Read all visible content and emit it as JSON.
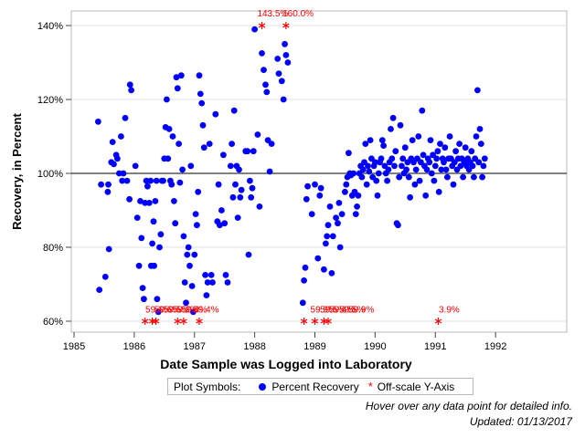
{
  "chart_data": {
    "type": "scatter",
    "title": "",
    "xlabel": "Date Sample was Logged into Laboratory",
    "ylabel": "Recovery, in Percent",
    "xlim": [
      1985,
      1993
    ],
    "ylim": [
      60,
      145
    ],
    "x_ticks": [
      1985,
      1986,
      1987,
      1988,
      1989,
      1990,
      1991,
      1992
    ],
    "x_tick_labels": [
      "1985",
      "1986",
      "1987",
      "1988",
      "1989",
      "1990",
      "1991",
      "1992"
    ],
    "y_ticks": [
      60,
      80,
      100,
      120,
      140
    ],
    "y_tick_labels": [
      "60%",
      "80%",
      "100%",
      "120%",
      "140%"
    ],
    "reference_line": 100,
    "grid": "horizontal",
    "legend_title": "Plot Symbols:",
    "legend_position": "bottom",
    "series": [
      {
        "name": "Percent Recovery",
        "marker": "circle",
        "color": "#0000ff",
        "points": [
          [
            1985.4,
            114
          ],
          [
            1985.45,
            97
          ],
          [
            1985.42,
            68.5
          ],
          [
            1985.52,
            72
          ],
          [
            1985.56,
            95
          ],
          [
            1985.57,
            97
          ],
          [
            1985.58,
            79.5
          ],
          [
            1985.62,
            103
          ],
          [
            1985.64,
            108.5
          ],
          [
            1985.66,
            102.5
          ],
          [
            1985.7,
            105
          ],
          [
            1985.72,
            104
          ],
          [
            1985.75,
            100
          ],
          [
            1985.78,
            110
          ],
          [
            1985.8,
            98
          ],
          [
            1985.82,
            100
          ],
          [
            1985.85,
            115
          ],
          [
            1985.88,
            98
          ],
          [
            1985.92,
            93
          ],
          [
            1985.93,
            124
          ],
          [
            1985.95,
            122.5
          ],
          [
            1986.02,
            102
          ],
          [
            1986.05,
            88
          ],
          [
            1986.08,
            75
          ],
          [
            1986.1,
            92.5
          ],
          [
            1986.12,
            82.5
          ],
          [
            1986.14,
            69
          ],
          [
            1986.16,
            66
          ],
          [
            1986.18,
            92
          ],
          [
            1986.2,
            98
          ],
          [
            1986.22,
            96.5
          ],
          [
            1986.25,
            92
          ],
          [
            1986.27,
            98
          ],
          [
            1986.28,
            75
          ],
          [
            1986.3,
            81
          ],
          [
            1986.32,
            87
          ],
          [
            1986.33,
            75
          ],
          [
            1986.35,
            92.5
          ],
          [
            1986.37,
            98
          ],
          [
            1986.38,
            66
          ],
          [
            1986.4,
            62.5
          ],
          [
            1986.42,
            80
          ],
          [
            1986.44,
            83.5
          ],
          [
            1986.46,
            98
          ],
          [
            1986.48,
            98
          ],
          [
            1986.5,
            104
          ],
          [
            1986.52,
            112.5
          ],
          [
            1986.54,
            120
          ],
          [
            1986.56,
            104
          ],
          [
            1986.58,
            112
          ],
          [
            1986.6,
            98
          ],
          [
            1986.62,
            97
          ],
          [
            1986.64,
            110
          ],
          [
            1986.66,
            92.5
          ],
          [
            1986.68,
            86.5
          ],
          [
            1986.7,
            126
          ],
          [
            1986.72,
            123
          ],
          [
            1986.74,
            108
          ],
          [
            1986.76,
            97.5
          ],
          [
            1986.78,
            126.5
          ],
          [
            1986.8,
            101
          ],
          [
            1986.82,
            83
          ],
          [
            1986.84,
            70.5
          ],
          [
            1986.86,
            65
          ],
          [
            1986.88,
            78
          ],
          [
            1986.9,
            80
          ],
          [
            1986.92,
            75
          ],
          [
            1986.94,
            102
          ],
          [
            1986.96,
            69.5
          ],
          [
            1986.98,
            62.5
          ],
          [
            1987.0,
            78
          ],
          [
            1987.02,
            89
          ],
          [
            1987.04,
            86
          ],
          [
            1987.06,
            95
          ],
          [
            1987.08,
            126.5
          ],
          [
            1987.1,
            121.5
          ],
          [
            1987.12,
            119
          ],
          [
            1987.14,
            113
          ],
          [
            1987.16,
            107
          ],
          [
            1987.18,
            72.5
          ],
          [
            1987.2,
            67
          ],
          [
            1987.22,
            70.5
          ],
          [
            1987.25,
            108
          ],
          [
            1987.28,
            72.5
          ],
          [
            1987.3,
            70.5
          ],
          [
            1987.35,
            116
          ],
          [
            1987.38,
            87
          ],
          [
            1987.4,
            97
          ],
          [
            1987.42,
            86
          ],
          [
            1987.45,
            90
          ],
          [
            1987.48,
            105
          ],
          [
            1987.5,
            86.5
          ],
          [
            1987.52,
            72.5
          ],
          [
            1987.55,
            70.5
          ],
          [
            1987.6,
            102
          ],
          [
            1987.62,
            108
          ],
          [
            1987.64,
            93.5
          ],
          [
            1987.66,
            117
          ],
          [
            1987.68,
            97
          ],
          [
            1987.7,
            102
          ],
          [
            1987.72,
            88
          ],
          [
            1987.74,
            101
          ],
          [
            1987.76,
            93.5
          ],
          [
            1987.78,
            95.5
          ],
          [
            1987.85,
            106
          ],
          [
            1987.88,
            106
          ],
          [
            1987.9,
            78
          ],
          [
            1987.92,
            98
          ],
          [
            1987.94,
            93.5
          ],
          [
            1987.96,
            96
          ],
          [
            1987.98,
            106
          ],
          [
            1988.0,
            139
          ],
          [
            1988.05,
            110.5
          ],
          [
            1988.08,
            91
          ],
          [
            1988.12,
            132.5
          ],
          [
            1988.15,
            128
          ],
          [
            1988.18,
            124
          ],
          [
            1988.2,
            122
          ],
          [
            1988.22,
            109
          ],
          [
            1988.25,
            100.5
          ],
          [
            1988.28,
            108
          ],
          [
            1988.38,
            131
          ],
          [
            1988.4,
            127
          ],
          [
            1988.45,
            125
          ],
          [
            1988.48,
            120
          ],
          [
            1988.5,
            135
          ],
          [
            1988.52,
            132
          ],
          [
            1988.55,
            130
          ],
          [
            1988.8,
            65
          ],
          [
            1988.82,
            71
          ],
          [
            1988.84,
            74.5
          ],
          [
            1988.86,
            93
          ],
          [
            1988.88,
            96.5
          ],
          [
            1988.95,
            89
          ],
          [
            1989.0,
            97
          ],
          [
            1989.05,
            77
          ],
          [
            1989.08,
            94
          ],
          [
            1989.1,
            96
          ],
          [
            1989.15,
            74
          ],
          [
            1989.18,
            81
          ],
          [
            1989.2,
            83
          ],
          [
            1989.22,
            86
          ],
          [
            1989.25,
            91
          ],
          [
            1989.28,
            73
          ],
          [
            1989.3,
            83
          ],
          [
            1989.35,
            88
          ],
          [
            1989.38,
            86.5
          ],
          [
            1989.4,
            92
          ],
          [
            1989.42,
            80
          ],
          [
            1989.45,
            89
          ],
          [
            1989.5,
            95
          ],
          [
            1989.52,
            97
          ],
          [
            1989.54,
            99
          ],
          [
            1989.56,
            105.5
          ],
          [
            1989.58,
            100
          ],
          [
            1989.6,
            99.5
          ],
          [
            1989.62,
            94
          ],
          [
            1989.64,
            100
          ],
          [
            1989.66,
            95
          ],
          [
            1989.68,
            89
          ],
          [
            1989.7,
            91
          ],
          [
            1989.72,
            94
          ],
          [
            1989.74,
            100
          ],
          [
            1989.76,
            102
          ],
          [
            1989.78,
            99
          ],
          [
            1989.8,
            101
          ],
          [
            1989.82,
            103
          ],
          [
            1989.84,
            108
          ],
          [
            1989.86,
            97
          ],
          [
            1989.88,
            102
          ],
          [
            1989.9,
            100.5
          ],
          [
            1989.92,
            109
          ],
          [
            1989.94,
            104
          ],
          [
            1989.96,
            99
          ],
          [
            1989.98,
            102
          ],
          [
            1990.0,
            103
          ],
          [
            1990.02,
            98
          ],
          [
            1990.04,
            94
          ],
          [
            1990.06,
            100
          ],
          [
            1990.08,
            103
          ],
          [
            1990.1,
            104
          ],
          [
            1990.12,
            109
          ],
          [
            1990.14,
            107.5
          ],
          [
            1990.16,
            102
          ],
          [
            1990.18,
            100
          ],
          [
            1990.2,
            98
          ],
          [
            1990.22,
            101
          ],
          [
            1990.24,
            103
          ],
          [
            1990.26,
            112
          ],
          [
            1990.28,
            104
          ],
          [
            1990.3,
            115
          ],
          [
            1990.32,
            102
          ],
          [
            1990.34,
            106
          ],
          [
            1990.36,
            86.5
          ],
          [
            1990.38,
            86
          ],
          [
            1990.4,
            99
          ],
          [
            1990.42,
            113
          ],
          [
            1990.44,
            102
          ],
          [
            1990.46,
            104
          ],
          [
            1990.48,
            100
          ],
          [
            1990.5,
            107
          ],
          [
            1990.52,
            101
          ],
          [
            1990.54,
            103
          ],
          [
            1990.56,
            99
          ],
          [
            1990.58,
            93.5
          ],
          [
            1990.6,
            104
          ],
          [
            1990.62,
            109
          ],
          [
            1990.64,
            103
          ],
          [
            1990.66,
            97
          ],
          [
            1990.68,
            101
          ],
          [
            1990.7,
            104
          ],
          [
            1990.72,
            110
          ],
          [
            1990.74,
            98
          ],
          [
            1990.76,
            103
          ],
          [
            1990.78,
            117
          ],
          [
            1990.8,
            105
          ],
          [
            1990.82,
            102
          ],
          [
            1990.84,
            94
          ],
          [
            1990.86,
            101
          ],
          [
            1990.88,
            104
          ],
          [
            1990.9,
            103
          ],
          [
            1990.92,
            109
          ],
          [
            1990.94,
            100
          ],
          [
            1990.96,
            105
          ],
          [
            1990.98,
            98
          ],
          [
            1991.0,
            102
          ],
          [
            1991.02,
            104
          ],
          [
            1991.04,
            106
          ],
          [
            1991.06,
            95
          ],
          [
            1991.08,
            108
          ],
          [
            1991.1,
            101
          ],
          [
            1991.12,
            104
          ],
          [
            1991.14,
            103
          ],
          [
            1991.16,
            107
          ],
          [
            1991.18,
            101
          ],
          [
            1991.2,
            99
          ],
          [
            1991.22,
            104
          ],
          [
            1991.24,
            110
          ],
          [
            1991.26,
            104
          ],
          [
            1991.28,
            102
          ],
          [
            1991.3,
            97
          ],
          [
            1991.32,
            103
          ],
          [
            1991.34,
            106
          ],
          [
            1991.36,
            101
          ],
          [
            1991.38,
            104
          ],
          [
            1991.4,
            108
          ],
          [
            1991.42,
            102
          ],
          [
            1991.44,
            104
          ],
          [
            1991.46,
            99
          ],
          [
            1991.48,
            103
          ],
          [
            1991.5,
            107
          ],
          [
            1991.52,
            102
          ],
          [
            1991.54,
            104
          ],
          [
            1991.56,
            101
          ],
          [
            1991.58,
            103
          ],
          [
            1991.6,
            106
          ],
          [
            1991.62,
            102
          ],
          [
            1991.64,
            99
          ],
          [
            1991.66,
            104
          ],
          [
            1991.68,
            110
          ],
          [
            1991.7,
            122.5
          ],
          [
            1991.72,
            103
          ],
          [
            1991.74,
            112
          ],
          [
            1991.76,
            108
          ],
          [
            1991.78,
            99
          ],
          [
            1991.8,
            102
          ],
          [
            1991.82,
            104
          ]
        ]
      },
      {
        "name": "Off-scale Y-Axis",
        "marker": "asterisk",
        "color": "#ff0000",
        "points": [
          [
            1986.18,
            60
          ],
          [
            1986.3,
            60
          ],
          [
            1986.36,
            60
          ],
          [
            1986.72,
            60
          ],
          [
            1986.82,
            60
          ],
          [
            1987.08,
            60
          ],
          [
            1988.12,
            140
          ],
          [
            1988.52,
            140
          ],
          [
            1988.82,
            60
          ],
          [
            1989.0,
            60
          ],
          [
            1989.15,
            60
          ],
          [
            1989.22,
            60
          ],
          [
            1991.05,
            60
          ]
        ]
      }
    ],
    "annotations": [
      {
        "text": "143.5%",
        "x": 1988.3,
        "y": 142.5
      },
      {
        "text": "160.0%",
        "x": 1988.72,
        "y": 142.5
      },
      {
        "text": "59.9%",
        "x": 1989.14,
        "y": 62.3
      },
      {
        "text": "3.9%",
        "x": 1991.23,
        "y": 62.3
      },
      {
        "text": "59.6%",
        "x": 1986.4,
        "y": 62.3
      },
      {
        "text": "59.6%",
        "x": 1986.55,
        "y": 62.3
      },
      {
        "text": "59.5%",
        "x": 1986.7,
        "y": 62.3
      },
      {
        "text": "59.2%",
        "x": 1986.85,
        "y": 62.3
      },
      {
        "text": "59.4%",
        "x": 1987.0,
        "y": 62.3
      },
      {
        "text": "59.4%",
        "x": 1987.19,
        "y": 62.3
      },
      {
        "text": "59.5%",
        "x": 1989.3,
        "y": 62.3
      },
      {
        "text": "59.4%",
        "x": 1989.45,
        "y": 62.3
      },
      {
        "text": "59.5%",
        "x": 1989.62,
        "y": 62.3
      },
      {
        "text": "59.9%",
        "x": 1989.77,
        "y": 62.3
      }
    ]
  },
  "legend": {
    "title": "Plot Symbols:",
    "items": [
      {
        "label": "Percent Recovery",
        "color": "#0000ff"
      },
      {
        "label": "Off-scale Y-Axis",
        "color": "#ff0000"
      }
    ]
  },
  "footnotes": {
    "hover": "Hover over any data point for detailed info.",
    "updated": "Updated: 01/13/2017"
  }
}
